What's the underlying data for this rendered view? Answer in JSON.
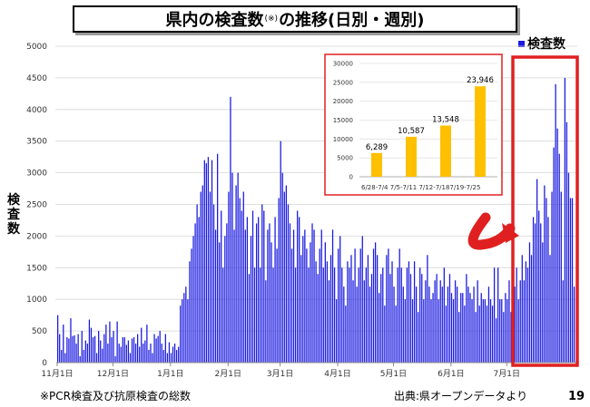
{
  "title": {
    "main_before": "県内の検査数",
    "note_mark": "(※)",
    "main_after": "の推移(日別・週別)"
  },
  "legend": {
    "label": "検査数"
  },
  "y_axis_label": "検査数",
  "footnote": "※PCR検査及び抗原検査の総数",
  "source": "出典:県オープンデータより",
  "page_number": "19",
  "colors": {
    "daily_bar": "#1a1ae0",
    "weekly_bar": "#ffc000",
    "highlight_box": "#e02020",
    "arrow": "#e02020"
  },
  "chart_data": [
    {
      "type": "bar",
      "name": "daily",
      "ylim": [
        0,
        5000
      ],
      "y_ticks": [
        0,
        500,
        1000,
        1500,
        2000,
        2500,
        3000,
        3500,
        4000,
        4500,
        5000
      ],
      "x_tick_labels": [
        {
          "label": "11月1日",
          "day_index": 0
        },
        {
          "label": "12月1日",
          "day_index": 30
        },
        {
          "label": "1月1日",
          "day_index": 61
        },
        {
          "label": "2月1日",
          "day_index": 92
        },
        {
          "label": "3月1日",
          "day_index": 120
        },
        {
          "label": "4月1日",
          "day_index": 151
        },
        {
          "label": "5月1日",
          "day_index": 181
        },
        {
          "label": "6月1日",
          "day_index": 212
        },
        {
          "label": "7月1日",
          "day_index": 242
        }
      ],
      "values": [
        750,
        450,
        200,
        600,
        150,
        400,
        380,
        700,
        420,
        430,
        300,
        450,
        100,
        500,
        200,
        350,
        300,
        680,
        550,
        400,
        420,
        150,
        500,
        350,
        220,
        450,
        600,
        300,
        650,
        400,
        500,
        100,
        650,
        300,
        250,
        400,
        400,
        280,
        350,
        150,
        380,
        400,
        300,
        450,
        250,
        550,
        300,
        350,
        600,
        200,
        300,
        150,
        450,
        380,
        420,
        500,
        300,
        200,
        450,
        150,
        320,
        150,
        250,
        300,
        200,
        250,
        900,
        1000,
        1100,
        1200,
        1000,
        1600,
        1800,
        2000,
        2200,
        2500,
        2300,
        2700,
        2800,
        3200,
        3150,
        3250,
        2700,
        3200,
        2500,
        2100,
        3300,
        1900,
        2400,
        1500,
        2000,
        2200,
        2700,
        4200,
        3000,
        2100,
        2800,
        3000,
        2600,
        2400,
        2700,
        2100,
        2300,
        1400,
        2000,
        2400,
        1500,
        2200,
        2300,
        1500,
        2500,
        2400,
        1300,
        2100,
        2200,
        1900,
        1500,
        2300,
        1800,
        2600,
        3500,
        3000,
        2700,
        2800,
        2500,
        2200,
        1800,
        2100,
        1500,
        2400,
        2300,
        1700,
        2000,
        2100,
        1800,
        1500,
        1900,
        2200,
        2100,
        1600,
        1400,
        1800,
        2100,
        1500,
        1900,
        1600,
        1300,
        1700,
        2100,
        1500,
        1000,
        1800,
        2000,
        1500,
        1200,
        900,
        1600,
        1500,
        1700,
        1300,
        1800,
        1200,
        1500,
        1800,
        2000,
        1300,
        1500,
        1700,
        1200,
        1400,
        1800,
        1900,
        1700,
        1100,
        1400,
        1500,
        900,
        1700,
        1800,
        1400,
        1600,
        1200,
        900,
        1500,
        1800,
        1500,
        1200,
        1000,
        1500,
        1600,
        1400,
        1000,
        1600,
        1200,
        800,
        1500,
        1400,
        1000,
        1300,
        1700,
        1200,
        1000,
        1100,
        1300,
        1400,
        1000,
        1300,
        1200,
        1500,
        900,
        1200,
        1400,
        1100,
        1000,
        1300,
        1200,
        800,
        1100,
        1100,
        900,
        1400,
        1200,
        1100,
        1000,
        1200,
        800,
        1300,
        900,
        1100,
        1000,
        1000,
        900,
        1200,
        1000,
        900,
        1500,
        700,
        1500,
        1000,
        1000,
        800,
        1100,
        1000,
        1300,
        800,
        900,
        1200,
        1500,
        1000,
        1300,
        1700,
        1300,
        1600,
        1500,
        1900,
        1700,
        2300,
        2200,
        2900,
        2400,
        2200,
        1900,
        2800,
        2600,
        2300,
        1700,
        2700,
        3400,
        4400,
        3700,
        3300,
        2700,
        1300,
        4500,
        3800,
        3000,
        2600,
        2600,
        1200
      ]
    },
    {
      "type": "bar",
      "name": "weekly",
      "categories": [
        "6/28-7/4",
        "7/5-7/11",
        "7/12-7/18",
        "7/19-7/25"
      ],
      "values": [
        6289,
        10587,
        13548,
        23946
      ],
      "data_labels": [
        "6,289",
        "10,587",
        "13,548",
        "23,946"
      ],
      "category_tick_text": "6/28-7/4  7/5-7/11  7/12-7/187/19-7/25",
      "ylim": [
        0,
        30000
      ],
      "y_ticks": [
        0,
        5000,
        10000,
        15000,
        20000,
        25000,
        30000
      ]
    }
  ]
}
